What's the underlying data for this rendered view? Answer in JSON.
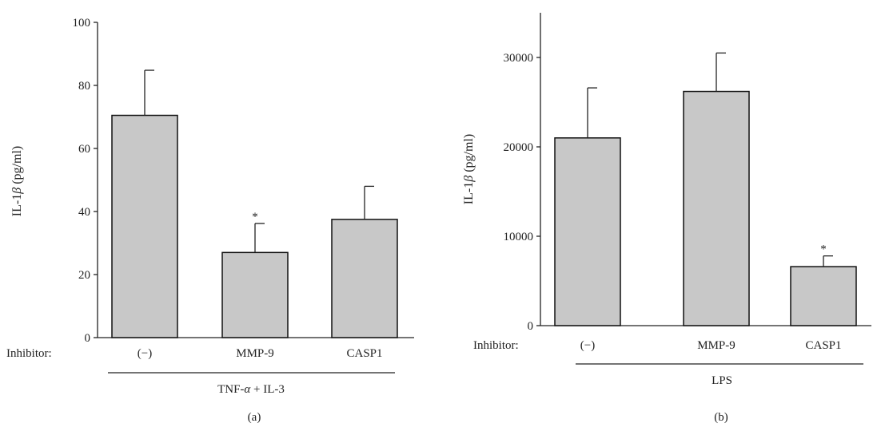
{
  "chart_data": [
    {
      "type": "bar",
      "panel_label": "(a)",
      "ylabel_prefix": "IL-1",
      "ylabel_symbol": "β",
      "ylabel_suffix": " (pg/ml)",
      "ylim": [
        0,
        100
      ],
      "yticks": [
        "0",
        "20",
        "40",
        "60",
        "80",
        "100"
      ],
      "ytick_values": [
        0,
        20,
        40,
        60,
        80,
        100
      ],
      "row_label": "Inhibitor:",
      "categories": [
        "(−)",
        "MMP-9",
        "CASP1"
      ],
      "values": [
        70.5,
        27,
        37.5
      ],
      "errors": [
        14.3,
        9.2,
        10.5
      ],
      "significance": [
        "",
        "*",
        ""
      ],
      "group_label_parts": [
        "TNF-",
        "α",
        " + IL-3"
      ],
      "bar_color": "#c8c8c8",
      "grid": false
    },
    {
      "type": "bar",
      "panel_label": "(b)",
      "ylabel_prefix": "IL-1",
      "ylabel_symbol": "β",
      "ylabel_suffix": " (pg/ml)",
      "ylim": [
        0,
        35000
      ],
      "yticks": [
        "0",
        "10000",
        "20000",
        "30000"
      ],
      "ytick_values": [
        0,
        10000,
        20000,
        30000
      ],
      "row_label": "Inhibitor:",
      "categories": [
        "(−)",
        "MMP-9",
        "CASP1"
      ],
      "values": [
        21000,
        26200,
        6600
      ],
      "errors": [
        5600,
        4300,
        1200
      ],
      "significance": [
        "",
        "",
        "*"
      ],
      "group_label_parts": [
        "LPS"
      ],
      "bar_color": "#c8c8c8",
      "grid": false
    }
  ]
}
